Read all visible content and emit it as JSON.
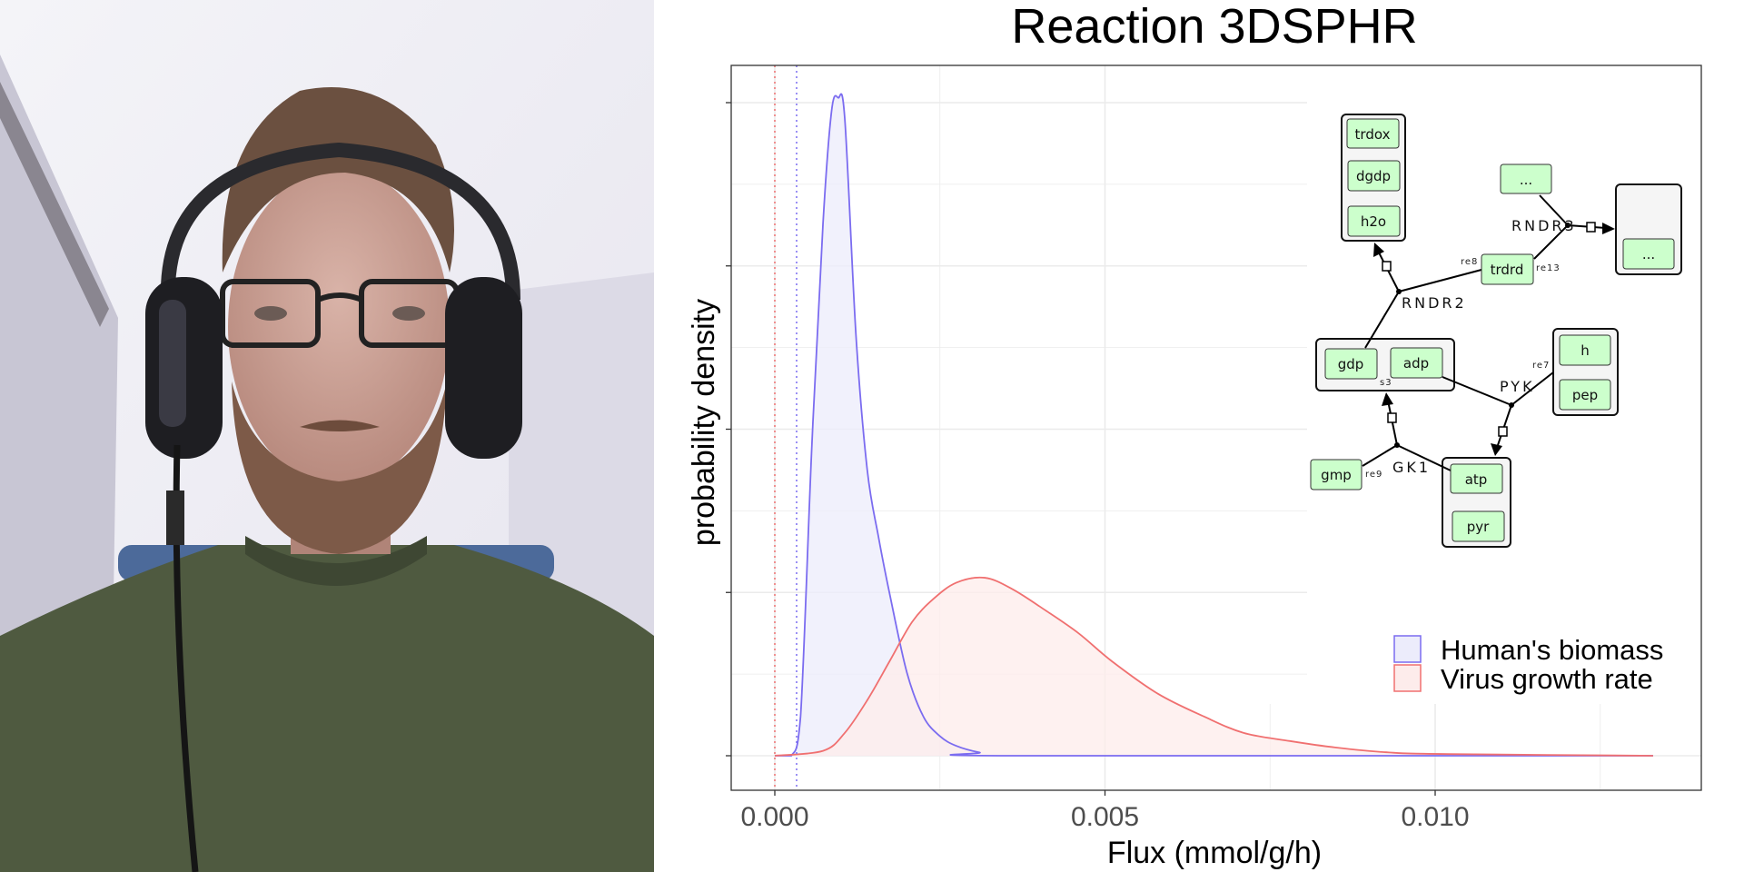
{
  "chart_data": {
    "type": "area",
    "title": "Reaction 3DSPHR",
    "xlabel": "Flux (mmol/g/h)",
    "ylabel": "probability density",
    "xlim": [
      -0.00065,
      0.0141
    ],
    "ylim": [
      -20,
      425
    ],
    "x_ticks": [
      0.0,
      0.005,
      0.01
    ],
    "x_tick_labels": [
      "0.000",
      "0.005",
      "0.010"
    ],
    "y_ticks": [
      0,
      100,
      200,
      300,
      400
    ],
    "y_tick_labels_shown": false,
    "grid": true,
    "legend_position": "bottom-right",
    "series": [
      {
        "name": "Human's biomass",
        "color": "#7b6cf0",
        "fill": "#ececfb",
        "points": [
          [
            0,
            0
          ],
          [
            0.00025,
            0
          ],
          [
            0.00039,
            24
          ],
          [
            0.00056,
            189
          ],
          [
            0.00073,
            326
          ],
          [
            0.00086,
            395
          ],
          [
            0.00096,
            403
          ],
          [
            0.00106,
            390
          ],
          [
            0.00123,
            257
          ],
          [
            0.0014,
            175
          ],
          [
            0.00157,
            134
          ],
          [
            0.00174,
            99
          ],
          [
            0.002,
            51
          ],
          [
            0.00225,
            24
          ],
          [
            0.0025,
            12
          ],
          [
            0.00275,
            6
          ],
          [
            0.0031,
            2
          ],
          [
            0.0035,
            0
          ],
          [
            0.0133,
            0
          ]
        ]
      },
      {
        "name": "Virus growth rate",
        "color": "#f07070",
        "fill": "#fdeceb",
        "points": [
          [
            0,
            0
          ],
          [
            0.00073,
            3
          ],
          [
            0.00106,
            14
          ],
          [
            0.0014,
            34
          ],
          [
            0.00174,
            58
          ],
          [
            0.00208,
            82
          ],
          [
            0.0024,
            96
          ],
          [
            0.00275,
            106
          ],
          [
            0.00318,
            109
          ],
          [
            0.0036,
            102
          ],
          [
            0.0041,
            89
          ],
          [
            0.0046,
            75
          ],
          [
            0.0051,
            58
          ],
          [
            0.0058,
            38
          ],
          [
            0.0065,
            24
          ],
          [
            0.0071,
            14
          ],
          [
            0.0078,
            9
          ],
          [
            0.0085,
            5
          ],
          [
            0.0093,
            2
          ],
          [
            0.0102,
            1
          ],
          [
            0.0133,
            0
          ]
        ]
      }
    ],
    "vlines": [
      {
        "x": 0.0,
        "color": "#f07070",
        "style": "dotted"
      },
      {
        "x": 0.00033,
        "color": "#7b6cf0",
        "style": "dotted"
      }
    ]
  },
  "diagram": {
    "species": [
      "trdox",
      "dgdp",
      "h2o",
      "...",
      "...",
      "trdrd",
      "gdp",
      "adp",
      "h",
      "pep",
      "gmp",
      "atp",
      "pyr"
    ],
    "reactions": [
      "RNDR3",
      "RNDR2",
      "PYK",
      "GK1"
    ],
    "annotations": [
      "re8",
      "re13",
      "re7",
      "re9",
      "s3"
    ]
  }
}
